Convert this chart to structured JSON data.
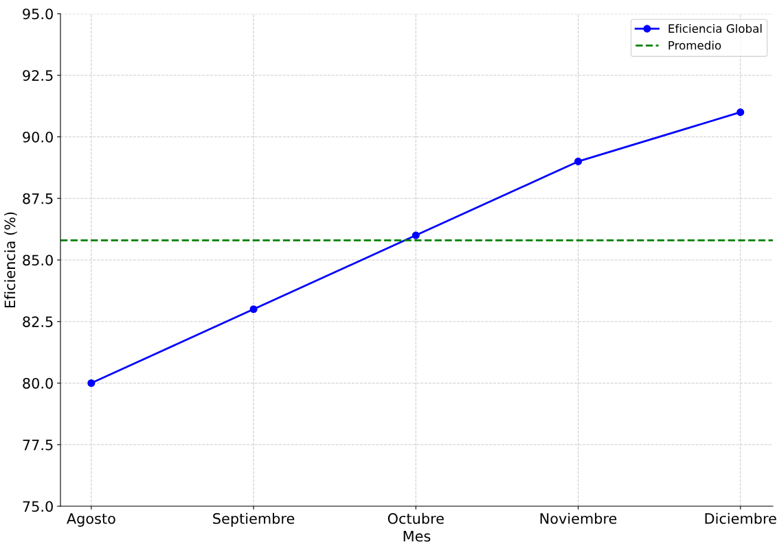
{
  "chart_data": {
    "type": "line",
    "xlabel": "Mes",
    "ylabel": "Eficiencia (%)",
    "categories": [
      "Agosto",
      "Septiembre",
      "Octubre",
      "Noviembre",
      "Diciembre"
    ],
    "series": [
      {
        "name": "Eficiencia Global",
        "color": "#0000ff",
        "values": [
          80,
          83,
          86,
          89,
          91
        ]
      }
    ],
    "ref_lines": [
      {
        "axis": "y",
        "value": 85.8,
        "label": "Promedio",
        "color": "#008000",
        "line_style": "dashed"
      }
    ],
    "ylim": [
      75,
      95
    ],
    "yticks": [
      {
        "value": 75,
        "label": "75.0"
      },
      {
        "value": 77.5,
        "label": "77.5"
      },
      {
        "value": 80,
        "label": "80.0"
      },
      {
        "value": 82.5,
        "label": "82.5"
      },
      {
        "value": 85,
        "label": "85.0"
      },
      {
        "value": 87.5,
        "label": "87.5"
      },
      {
        "value": 90,
        "label": "90.0"
      },
      {
        "value": 92.5,
        "label": "92.5"
      },
      {
        "value": 95,
        "label": "95.0"
      }
    ],
    "grid": true,
    "legend": "top right",
    "marker": "circle",
    "line_style": "solid"
  }
}
